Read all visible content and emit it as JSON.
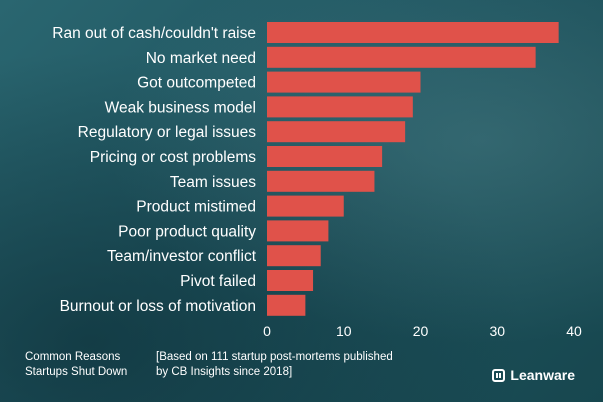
{
  "chart_data": {
    "type": "bar",
    "orientation": "horizontal",
    "categories": [
      "Ran out of cash/couldn't raise",
      "No market need",
      "Got outcompeted",
      "Weak business model",
      "Regulatory or legal issues",
      "Pricing or cost problems",
      "Team issues",
      "Product mistimed",
      "Poor product quality",
      "Team/investor conflict",
      "Pivot failed",
      "Burnout or loss of motivation"
    ],
    "values": [
      38,
      35,
      20,
      19,
      18,
      15,
      14,
      10,
      8,
      7,
      6,
      5
    ],
    "xlim": [
      0,
      40
    ],
    "xticks": [
      0,
      10,
      20,
      30,
      40
    ],
    "bar_color": "#e0524a",
    "grid": false,
    "legend": "none"
  },
  "footer": {
    "caption_left": "Common Reasons Startups Shut Down",
    "caption_right": "[Based on 111 startup post-mortems published by CB Insights since 2018]",
    "brand": "Leanware",
    "brand_icon": "leanware-logo-icon"
  }
}
